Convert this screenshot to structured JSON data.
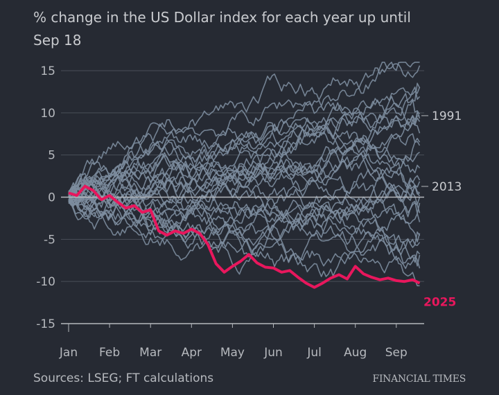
{
  "chart_data": {
    "type": "line",
    "title": "% change in the US Dollar index for each year up until Sep 18",
    "title_lines": [
      "% change in the US Dollar index for each year up until",
      "Sep 18"
    ],
    "xlabel": "",
    "ylabel": "",
    "ylim": [
      -15,
      15
    ],
    "yticks": [
      15,
      10,
      5,
      0,
      -5,
      -10,
      -15
    ],
    "ytick_labels": [
      "15",
      "10",
      "5",
      "0",
      "-5",
      "-10",
      "-15"
    ],
    "xticks": [
      "Jan",
      "Feb",
      "Mar",
      "Apr",
      "May",
      "Jun",
      "Jul",
      "Aug",
      "Sep"
    ],
    "x_unit": "month index from Jan (0) to Sep 18 (~8.57)",
    "grid": true,
    "source": "Sources: LSEG; FT calculations",
    "brand": "FINANCIAL TIMES",
    "colors": {
      "background": "#262a33",
      "lines": "#7d8d9f",
      "highlight": "#e8175d",
      "grid": "#4a4f59",
      "zero": "#b6b9be"
    },
    "labelled_series": [
      {
        "name": "1991",
        "end_value": 9.5
      },
      {
        "name": "2013",
        "end_value": 0.7
      },
      {
        "name": "2025",
        "end_value": -10.2,
        "highlight": true
      }
    ],
    "highlight_series": {
      "name": "2025",
      "x": [
        0,
        0.2,
        0.4,
        0.6,
        0.8,
        1.0,
        1.2,
        1.4,
        1.6,
        1.8,
        2.0,
        2.2,
        2.4,
        2.6,
        2.8,
        3.0,
        3.2,
        3.4,
        3.6,
        3.8,
        4.0,
        4.2,
        4.4,
        4.6,
        4.8,
        5.0,
        5.2,
        5.4,
        5.6,
        5.8,
        6.0,
        6.2,
        6.4,
        6.6,
        6.8,
        7.0,
        7.2,
        7.4,
        7.6,
        7.8,
        8.0,
        8.2,
        8.4,
        8.57
      ],
      "values": [
        0.5,
        0.2,
        1.3,
        0.8,
        -0.3,
        0.2,
        -0.6,
        -1.3,
        -1.0,
        -1.8,
        -1.5,
        -4.0,
        -4.5,
        -4.0,
        -4.3,
        -3.8,
        -4.3,
        -5.6,
        -7.9,
        -8.9,
        -8.2,
        -7.6,
        -6.8,
        -7.8,
        -8.3,
        -8.4,
        -8.9,
        -8.7,
        -9.5,
        -10.2,
        -10.7,
        -10.2,
        -9.6,
        -9.2,
        -9.7,
        -8.2,
        -9.1,
        -9.5,
        -9.8,
        -9.6,
        -9.9,
        -10.0,
        -9.8,
        -10.2
      ]
    },
    "background_series_count": 30
  }
}
